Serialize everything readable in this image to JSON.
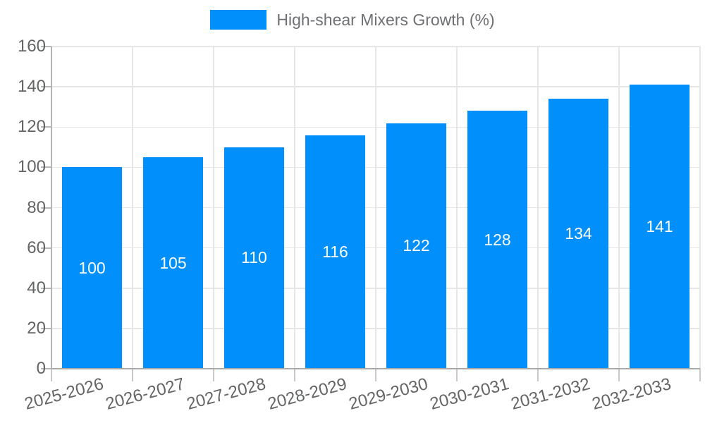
{
  "legend": {
    "label": "High-shear Mixers Growth (%)",
    "swatch_color": "#008FFB"
  },
  "chart_data": {
    "type": "bar",
    "title": "High-shear Mixers Growth (%)",
    "categories": [
      "2025-2026",
      "2026-2027",
      "2027-2028",
      "2028-2029",
      "2029-2030",
      "2030-2031",
      "2031-2032",
      "2032-2033"
    ],
    "values": [
      100,
      105,
      110,
      116,
      122,
      128,
      134,
      141
    ],
    "ylim": [
      0,
      160
    ],
    "yticks": [
      0,
      20,
      40,
      60,
      80,
      100,
      120,
      140,
      160
    ],
    "grid": true,
    "legend_position": "top",
    "xaxis_label_rotation_deg": -15,
    "bar_color": "#008FFB",
    "data_label_color": "#ffffff",
    "axis_label_color": "#626466",
    "grid_color": "#e6e6e6",
    "axis_line_color": "#a9a9a9"
  }
}
